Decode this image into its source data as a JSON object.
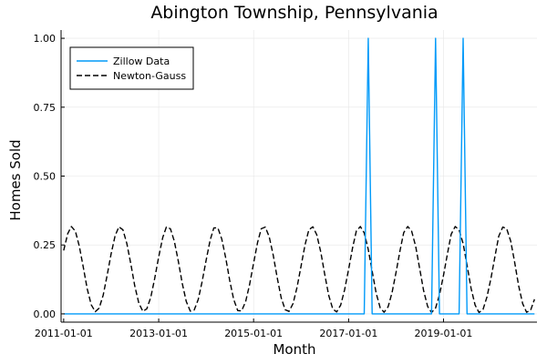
{
  "chart_data": {
    "type": "line",
    "title": "Abington Township, Pennsylvania",
    "xlabel": "Month",
    "ylabel": "Homes Sold",
    "xlim": [
      "2010-12-12",
      "2020-12-20"
    ],
    "ylim": [
      -0.03,
      1.03
    ],
    "x_ticks": [
      "2011-01-01",
      "2013-01-01",
      "2015-01-01",
      "2017-01-01",
      "2019-01-01"
    ],
    "y_ticks": [
      0.0,
      0.25,
      0.5,
      0.75,
      1.0
    ],
    "y_tick_labels": [
      "0.00",
      "0.25",
      "0.50",
      "0.75",
      "1.00"
    ],
    "grid": true,
    "legend_position": "top-left",
    "series": [
      {
        "name": "Zillow Data",
        "style": "solid",
        "color": "#009af9",
        "x": [
          "2011-01-01",
          "2017-05-01",
          "2017-06-01",
          "2017-07-01",
          "2018-10-01",
          "2018-11-01",
          "2018-12-01",
          "2019-05-01",
          "2019-06-01",
          "2019-07-01",
          "2020-12-01"
        ],
        "values": [
          0,
          0,
          1,
          0,
          0,
          1,
          0,
          0,
          1,
          0,
          0
        ]
      },
      {
        "name": "Newton-Gauss",
        "style": "dashed",
        "color": "#000000",
        "x": [
          "2011-01-01",
          "2011-02-01",
          "2011-03-01",
          "2011-04-01",
          "2011-05-01",
          "2011-06-01",
          "2011-07-01",
          "2011-08-01",
          "2011-09-01",
          "2011-10-01",
          "2011-11-01",
          "2011-12-01",
          "2012-01-01",
          "2012-02-01",
          "2012-03-01",
          "2012-04-01",
          "2012-05-01",
          "2012-06-01",
          "2012-07-01",
          "2012-08-01",
          "2012-09-01",
          "2012-10-01",
          "2012-11-01",
          "2012-12-01",
          "2013-01-01",
          "2013-02-01",
          "2013-03-01",
          "2013-04-01",
          "2013-05-01",
          "2013-06-01",
          "2013-07-01",
          "2013-08-01",
          "2013-09-01",
          "2013-10-01",
          "2013-11-01",
          "2013-12-01",
          "2014-01-01",
          "2014-02-01",
          "2014-03-01",
          "2014-04-01",
          "2014-05-01",
          "2014-06-01",
          "2014-07-01",
          "2014-08-01",
          "2014-09-01",
          "2014-10-01",
          "2014-11-01",
          "2014-12-01",
          "2015-01-01",
          "2015-02-01",
          "2015-03-01",
          "2015-04-01",
          "2015-05-01",
          "2015-06-01",
          "2015-07-01",
          "2015-08-01",
          "2015-09-01",
          "2015-10-01",
          "2015-11-01",
          "2015-12-01",
          "2016-01-01",
          "2016-02-01",
          "2016-03-01",
          "2016-04-01",
          "2016-05-01",
          "2016-06-01",
          "2016-07-01",
          "2016-08-01",
          "2016-09-01",
          "2016-10-01",
          "2016-11-01",
          "2016-12-01",
          "2017-01-01",
          "2017-02-01",
          "2017-03-01",
          "2017-04-01",
          "2017-05-01",
          "2017-06-01",
          "2017-07-01",
          "2017-08-01",
          "2017-09-01",
          "2017-10-01",
          "2017-11-01",
          "2017-12-01",
          "2018-01-01",
          "2018-02-01",
          "2018-03-01",
          "2018-04-01",
          "2018-05-01",
          "2018-06-01",
          "2018-07-01",
          "2018-08-01",
          "2018-09-01",
          "2018-10-01",
          "2018-11-01",
          "2018-12-01",
          "2019-01-01",
          "2019-02-01",
          "2019-03-01",
          "2019-04-01",
          "2019-05-01",
          "2019-06-01",
          "2019-07-01",
          "2019-08-01",
          "2019-09-01",
          "2019-10-01",
          "2019-11-01",
          "2019-12-01",
          "2020-01-01",
          "2020-02-01",
          "2020-03-01",
          "2020-04-01",
          "2020-05-01",
          "2020-06-01",
          "2020-07-01",
          "2020-08-01",
          "2020-09-01",
          "2020-10-01",
          "2020-11-01",
          "2020-12-01"
        ],
        "values": [
          0.23,
          0.291,
          0.317,
          0.3,
          0.246,
          0.169,
          0.091,
          0.033,
          0.008,
          0.021,
          0.068,
          0.139,
          0.218,
          0.284,
          0.316,
          0.305,
          0.255,
          0.18,
          0.101,
          0.039,
          0.009,
          0.018,
          0.06,
          0.128,
          0.207,
          0.277,
          0.315,
          0.309,
          0.264,
          0.191,
          0.111,
          0.045,
          0.01,
          0.014,
          0.052,
          0.117,
          0.195,
          0.268,
          0.312,
          0.312,
          0.272,
          0.202,
          0.122,
          0.052,
          0.012,
          0.011,
          0.045,
          0.106,
          0.184,
          0.26,
          0.309,
          0.315,
          0.28,
          0.213,
          0.133,
          0.059,
          0.015,
          0.009,
          0.038,
          0.096,
          0.173,
          0.251,
          0.305,
          0.316,
          0.287,
          0.224,
          0.144,
          0.067,
          0.018,
          0.007,
          0.032,
          0.087,
          0.162,
          0.241,
          0.3,
          0.317,
          0.294,
          0.234,
          0.155,
          0.075,
          0.022,
          0.006,
          0.026,
          0.077,
          0.151,
          0.231,
          0.295,
          0.317,
          0.3,
          0.245,
          0.166,
          0.084,
          0.027,
          0.005,
          0.021,
          0.069,
          0.14,
          0.22,
          0.289,
          0.317,
          0.305,
          0.255,
          0.177,
          0.093,
          0.032,
          0.005,
          0.016,
          0.061,
          0.129,
          0.209,
          0.282,
          0.315,
          0.309,
          0.264,
          0.188,
          0.102,
          0.037,
          0.006,
          0.013,
          0.053
        ]
      }
    ]
  }
}
